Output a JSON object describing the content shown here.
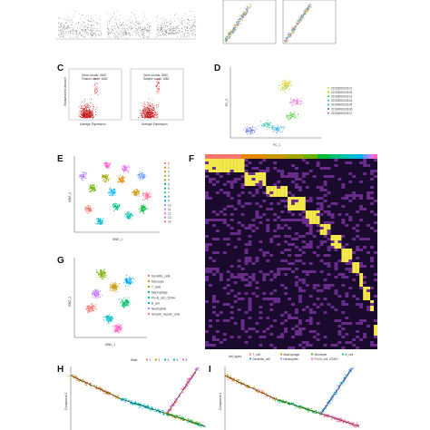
{
  "panels": {
    "C": {
      "letter": "C",
      "left_legend": [
        "Gene counts: 2640",
        "Feature count: 1682"
      ],
      "right_legend": [
        "Gene counts: 2640",
        "Sample count: 1682"
      ],
      "xlabel": "Average Expression",
      "ylabel": "Standardized Variance"
    },
    "D": {
      "letter": "D",
      "legend": [
        "CDS0000C0101",
        "CDS0000C0102",
        "CDS0000C0103",
        "CDS0000C0104",
        "CDS0000C0105",
        "CDS0000C0106",
        "CDS0000C0107"
      ],
      "legend_colors": [
        "#e7d43a",
        "#b5d334",
        "#5fce4a",
        "#35c9a8",
        "#38b1e0",
        "#5a6ce0",
        "#d86fd0"
      ],
      "xlabel": "PC_1",
      "ylabel": "PC_2"
    },
    "E": {
      "letter": "E",
      "clusters": [
        "0",
        "1",
        "2",
        "3",
        "4",
        "5",
        "6",
        "7",
        "8",
        "9",
        "10",
        "11",
        "12",
        "13",
        "14"
      ],
      "colors": [
        "#f8766d",
        "#e58700",
        "#c99800",
        "#a3a500",
        "#6bb100",
        "#00ba38",
        "#00bf7d",
        "#00c0af",
        "#00bcd8",
        "#00b0f6",
        "#619cff",
        "#b983ff",
        "#e76bf3",
        "#fd61d1",
        "#ff67a4"
      ],
      "xlabel": "tSNE_1",
      "ylabel": "tSNE_2"
    },
    "F": {
      "letter": "F"
    },
    "G": {
      "letter": "G",
      "legend": [
        "Dendritic_cells",
        "Monocyte",
        "T_cells",
        "Macrophage",
        "Pro-B_cell_CD34+",
        "B_cell",
        "Neutrophils",
        "Smooth_muscle_cells"
      ],
      "colors": [
        "#f8766d",
        "#c99800",
        "#7cae00",
        "#00be67",
        "#00bfc4",
        "#00a9ff",
        "#c77cff",
        "#ff61cc"
      ],
      "xlabel": "tSNE_1",
      "ylabel": "tSNE_2"
    },
    "H": {
      "letter": "H",
      "legend_title": "State",
      "states": [
        "1",
        "2",
        "3",
        "4",
        "5"
      ],
      "colors": [
        "#f8766d",
        "#a3a500",
        "#00bf7d",
        "#00b0f6",
        "#e76bf3"
      ],
      "ylabel": "Component 2"
    },
    "I": {
      "letter": "I",
      "legend_title": "cell_types",
      "types": [
        "T_cell",
        "Macrophage",
        "Monocyte",
        "B_cell",
        "Dendritic_cell",
        "Neutrophils",
        "Pro-B_cell_CD34+"
      ],
      "colors": [
        "#f8766d",
        "#c49a00",
        "#53b400",
        "#00c094",
        "#00b6eb",
        "#a58aff",
        "#fb61d7"
      ],
      "ylabel": "Component 2"
    }
  }
}
